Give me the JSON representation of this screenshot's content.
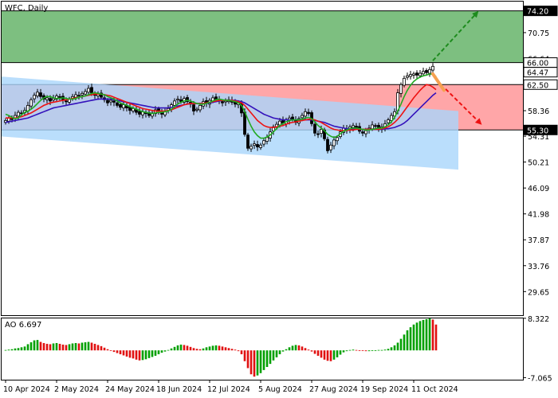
{
  "header": {
    "symbol_timeframe": "WFC, Daily"
  },
  "colors": {
    "bull_candle": "#000000",
    "bear_candle": "#000000",
    "ma_fast": "#22aa22",
    "ma_mid": "#ee1111",
    "ma_slow": "#3311bb",
    "resistance_zone": "#7dbf80",
    "range_zone": "#ffa6a8",
    "channel": "#a9d6fb",
    "ao_up": "#00a000",
    "ao_down": "#e01010",
    "arrow_up": "#1e8c1e",
    "arrow_down": "#ee1111",
    "arrow_orange": "#f5a050"
  },
  "chart_data": [
    {
      "type": "candlestick",
      "name": "price",
      "ylim": [
        25.9,
        75.8
      ],
      "y_ticks": [
        "74.20",
        "70.75",
        "66.64",
        "62.50",
        "58.36",
        "54.31",
        "50.21",
        "46.09",
        "41.98",
        "37.87",
        "33.76",
        "29.65"
      ],
      "x_ticks": [
        "10 Apr 2024",
        "2 May 2024",
        "24 May 2024",
        "18 Jun 2024",
        "12 Jul 2024",
        "5 Aug 2024",
        "27 Aug 2024",
        "19 Sep 2024",
        "11 Oct 2024"
      ],
      "price_labels": [
        {
          "text": "74.20",
          "value": 74.2,
          "style": "dark"
        },
        {
          "text": "66.00",
          "value": 66.0,
          "style": "box"
        },
        {
          "text": "64.47",
          "value": 64.47,
          "style": "box"
        },
        {
          "text": "62.50",
          "value": 62.5,
          "style": "box"
        },
        {
          "text": "55.30",
          "value": 55.3,
          "style": "dark"
        }
      ],
      "zones": [
        {
          "name": "resistance-zone",
          "from": 66.0,
          "to": 74.2
        },
        {
          "name": "trading-range",
          "from": 55.3,
          "to": 62.5
        }
      ],
      "channel": {
        "start": {
          "bar": -2,
          "upper": 63.8,
          "lower": 54.3
        },
        "end": {
          "bar": 142,
          "upper": 58.3,
          "lower": 49.0
        }
      },
      "bars": 136,
      "closes": [
        56.8,
        57.2,
        57.0,
        57.6,
        58.1,
        57.9,
        58.4,
        59.2,
        60.1,
        60.8,
        61.3,
        60.6,
        60.2,
        60.4,
        59.9,
        60.3,
        60.7,
        60.5,
        60.0,
        59.8,
        60.2,
        60.6,
        60.9,
        60.7,
        61.1,
        61.4,
        61.9,
        61.2,
        60.8,
        61.0,
        60.5,
        60.1,
        59.6,
        60.0,
        59.7,
        59.2,
        58.9,
        59.3,
        58.8,
        58.4,
        58.7,
        58.1,
        57.8,
        58.2,
        57.9,
        57.6,
        58.0,
        58.5,
        58.3,
        57.8,
        58.2,
        58.7,
        59.3,
        59.9,
        60.2,
        59.8,
        60.3,
        59.8,
        59.4,
        58.3,
        58.6,
        59.2,
        59.8,
        59.5,
        60.0,
        60.4,
        60.2,
        59.9,
        59.6,
        59.9,
        60.1,
        59.7,
        59.4,
        59.6,
        58.0,
        54.6,
        52.4,
        52.7,
        53.1,
        52.6,
        52.9,
        53.6,
        54.1,
        55.0,
        55.8,
        56.2,
        56.7,
        56.4,
        56.9,
        57.2,
        57.0,
        56.5,
        57.1,
        57.6,
        58.2,
        57.9,
        56.3,
        54.8,
        54.6,
        55.4,
        53.9,
        52.0,
        52.9,
        53.7,
        54.1,
        55.0,
        55.6,
        55.2,
        55.8,
        56.0,
        55.7,
        55.1,
        54.8,
        55.2,
        55.6,
        56.1,
        55.9,
        55.5,
        55.8,
        56.3,
        56.9,
        57.6,
        58.2,
        61.2,
        62.5,
        63.5,
        63.9,
        64.1,
        64.2,
        64.0,
        64.3,
        64.6,
        64.4,
        64.9,
        65.4
      ],
      "ma_fast": {
        "label": "",
        "values": [
          57.8,
          57.6,
          57.3,
          57.1,
          57.2,
          57.7,
          58.1,
          58.3,
          58.6,
          59.0,
          59.5,
          60.0,
          60.4,
          60.6,
          60.6,
          60.4,
          60.3,
          60.3,
          60.4,
          60.3,
          60.2,
          60.2,
          60.3,
          60.5,
          60.6,
          60.7,
          60.9,
          61.1,
          61.2,
          61.1,
          61.0,
          60.9,
          60.6,
          60.4,
          60.2,
          59.9,
          59.6,
          59.4,
          59.2,
          59.0,
          58.8,
          58.6,
          58.4,
          58.2,
          58.1,
          58.0,
          57.9,
          58.0,
          58.1,
          58.1,
          58.2,
          58.3,
          58.6,
          59.0,
          59.4,
          59.7,
          59.9,
          60.0,
          59.9,
          59.7,
          59.5,
          59.4,
          59.4,
          59.5,
          59.7,
          59.9,
          60.1,
          60.2,
          60.1,
          60.0,
          60.0,
          59.9,
          59.8,
          59.6,
          59.2,
          58.2,
          57.0,
          55.9,
          55.0,
          54.4,
          54.0,
          54.0,
          54.2,
          54.5,
          55.0,
          55.5,
          56.0,
          56.3,
          56.6,
          56.8,
          56.9,
          56.9,
          56.9,
          57.0,
          57.2,
          57.3,
          57.1,
          56.6,
          56.0,
          55.6,
          55.2,
          54.6,
          54.3,
          54.1,
          54.3,
          54.7,
          55.1,
          55.3,
          55.5,
          55.6,
          55.6,
          55.5,
          55.4,
          55.3,
          55.3,
          55.4,
          55.5,
          55.6,
          55.6,
          55.8,
          56.1,
          56.6,
          57.3,
          58.3,
          59.4,
          60.6,
          61.6,
          62.4,
          63.0,
          63.4,
          63.7,
          63.9,
          64.0,
          64.2,
          64.1,
          63.8
        ]
      },
      "ma_mid": {
        "label": "",
        "values": [
          57.2,
          57.2,
          57.2,
          57.2,
          57.3,
          57.4,
          57.6,
          57.8,
          58.0,
          58.3,
          58.6,
          58.9,
          59.2,
          59.4,
          59.6,
          59.7,
          59.8,
          59.9,
          60.0,
          60.1,
          60.2,
          60.3,
          60.4,
          60.5,
          60.6,
          60.7,
          60.8,
          60.9,
          61.0,
          61.0,
          61.0,
          60.9,
          60.8,
          60.7,
          60.5,
          60.3,
          60.1,
          59.9,
          59.7,
          59.5,
          59.3,
          59.1,
          58.9,
          58.7,
          58.6,
          58.5,
          58.4,
          58.3,
          58.3,
          58.3,
          58.3,
          58.4,
          58.5,
          58.7,
          58.9,
          59.1,
          59.3,
          59.4,
          59.5,
          59.5,
          59.5,
          59.5,
          59.5,
          59.6,
          59.7,
          59.8,
          59.9,
          60.0,
          60.0,
          60.0,
          60.0,
          60.0,
          59.9,
          59.8,
          59.6,
          59.2,
          58.6,
          58.0,
          57.4,
          56.8,
          56.4,
          56.0,
          55.8,
          55.7,
          55.7,
          55.8,
          55.9,
          56.0,
          56.2,
          56.4,
          56.5,
          56.6,
          56.7,
          56.8,
          56.9,
          57.0,
          57.0,
          56.9,
          56.7,
          56.5,
          56.2,
          55.9,
          55.6,
          55.4,
          55.3,
          55.2,
          55.2,
          55.2,
          55.3,
          55.3,
          55.4,
          55.4,
          55.4,
          55.4,
          55.4,
          55.4,
          55.4,
          55.4,
          55.5,
          55.6,
          55.8,
          56.1,
          56.5,
          57.0,
          57.6,
          58.3,
          59.0,
          59.7,
          60.4,
          61.0,
          61.6,
          62.1,
          62.5,
          62.4,
          62.1,
          61.7
        ]
      },
      "ma_slow": {
        "label": "",
        "values": [
          56.5,
          56.6,
          56.7,
          56.8,
          56.9,
          57.0,
          57.1,
          57.2,
          57.4,
          57.6,
          57.8,
          58.0,
          58.2,
          58.4,
          58.6,
          58.8,
          58.9,
          59.0,
          59.1,
          59.2,
          59.3,
          59.4,
          59.5,
          59.6,
          59.7,
          59.8,
          59.9,
          60.0,
          60.1,
          60.2,
          60.2,
          60.2,
          60.2,
          60.2,
          60.1,
          60.0,
          59.9,
          59.8,
          59.7,
          59.6,
          59.5,
          59.4,
          59.3,
          59.2,
          59.1,
          59.0,
          58.9,
          58.8,
          58.8,
          58.8,
          58.8,
          58.8,
          58.9,
          59.0,
          59.1,
          59.2,
          59.3,
          59.4,
          59.5,
          59.5,
          59.5,
          59.5,
          59.5,
          59.5,
          59.6,
          59.7,
          59.8,
          59.9,
          60.0,
          60.0,
          60.0,
          60.0,
          60.0,
          59.9,
          59.8,
          59.6,
          59.3,
          59.0,
          58.7,
          58.4,
          58.1,
          57.8,
          57.6,
          57.4,
          57.2,
          57.1,
          57.0,
          56.9,
          56.9,
          56.9,
          56.9,
          56.9,
          56.9,
          56.9,
          56.9,
          56.9,
          56.9,
          56.8,
          56.7,
          56.6,
          56.5,
          56.3,
          56.1,
          55.9,
          55.8,
          55.7,
          55.6,
          55.5,
          55.5,
          55.5,
          55.5,
          55.4,
          55.4,
          55.4,
          55.4,
          55.4,
          55.4,
          55.4,
          55.4,
          55.5,
          55.5,
          55.6,
          55.7,
          55.9,
          56.1,
          56.4,
          56.8,
          57.3,
          57.8,
          58.3,
          58.8,
          59.3,
          59.8,
          60.3,
          60.8,
          61.2
        ]
      },
      "arrows": [
        {
          "name": "projection-up",
          "from": {
            "bar": 134,
            "value": 66.3
          },
          "to": {
            "bar": 148,
            "value": 74.0
          },
          "color": "arrow_up"
        },
        {
          "name": "projection-down",
          "from": {
            "bar": 138,
            "value": 61.8
          },
          "to": {
            "bar": 149,
            "value": 56.3
          },
          "color": "arrow_down"
        }
      ]
    },
    {
      "type": "histogram",
      "name": "awesome-oscillator",
      "label": "AO 6.697",
      "ylim": [
        -7.6,
        8.5
      ],
      "y_ticks": [
        "8.322",
        "-7.065"
      ],
      "values": [
        0.1,
        0.2,
        0.3,
        0.5,
        0.6,
        0.8,
        1.0,
        1.6,
        2.1,
        2.6,
        2.7,
        2.2,
        1.9,
        1.7,
        1.6,
        1.8,
        1.9,
        1.7,
        1.5,
        1.4,
        1.6,
        1.8,
        1.9,
        1.8,
        2.0,
        2.1,
        2.2,
        2.0,
        1.7,
        1.4,
        1.1,
        0.7,
        0.3,
        -0.1,
        -0.4,
        -0.7,
        -1.0,
        -1.3,
        -1.6,
        -1.9,
        -2.1,
        -2.4,
        -2.6,
        -2.5,
        -2.3,
        -2.0,
        -1.7,
        -1.4,
        -1.0,
        -0.6,
        -0.3,
        0.1,
        0.5,
        0.9,
        1.3,
        1.5,
        1.4,
        1.2,
        0.9,
        0.6,
        0.4,
        0.3,
        0.5,
        0.8,
        1.0,
        1.2,
        1.3,
        1.2,
        1.0,
        0.8,
        0.6,
        0.4,
        0.2,
        -0.2,
        -1.0,
        -2.8,
        -4.6,
        -6.2,
        -6.8,
        -6.5,
        -5.9,
        -5.1,
        -4.3,
        -3.5,
        -2.6,
        -1.8,
        -1.0,
        -0.3,
        0.3,
        0.8,
        1.2,
        1.4,
        1.3,
        1.0,
        0.6,
        0.2,
        -0.3,
        -0.9,
        -1.4,
        -1.9,
        -2.4,
        -2.7,
        -2.8,
        -2.4,
        -1.8,
        -1.1,
        -0.5,
        -0.2,
        0.1,
        0.2,
        0.1,
        0.0,
        -0.1,
        -0.2,
        -0.2,
        -0.1,
        0.0,
        0.1,
        0.1,
        0.2,
        0.4,
        0.8,
        1.3,
        2.0,
        3.0,
        4.1,
        5.2,
        6.0,
        6.7,
        7.2,
        7.6,
        7.9,
        8.1,
        8.3,
        8.0,
        6.7
      ]
    }
  ]
}
